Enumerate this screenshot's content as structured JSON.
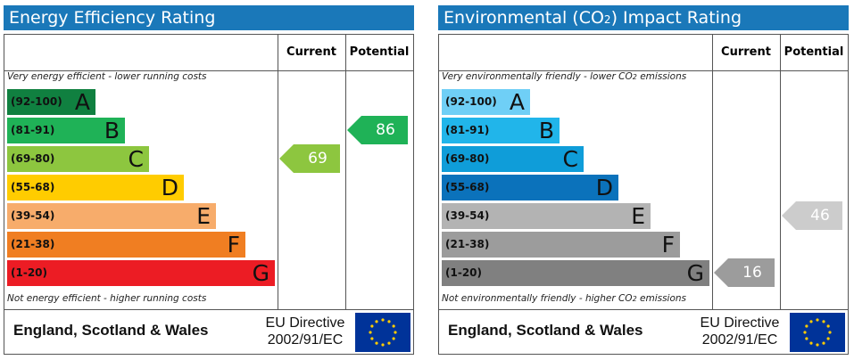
{
  "colors": {
    "header_bg": "#1a78b9",
    "energy": [
      "#108040",
      "#1fb257",
      "#8dc63f",
      "#ffcc00",
      "#f7ac6b",
      "#f07e22",
      "#ec1c24"
    ],
    "environmental": [
      "#6fcff6",
      "#21b5ea",
      "#0f9dd9",
      "#0b72bb",
      "#b3b3b3",
      "#9c9c9c",
      "#808080"
    ],
    "arrow_energy_current": "#8dc63f",
    "arrow_energy_potential": "#1fb257",
    "arrow_env_current": "#9c9c9c",
    "arrow_env_potential": "#cccccc"
  },
  "chart_data": [
    {
      "type": "bar",
      "title": "Energy Efficiency Rating",
      "columns": [
        "Current",
        "Potential"
      ],
      "top_caption": "Very energy efficient - lower running costs",
      "bottom_caption": "Not energy efficient - higher running costs",
      "bands": [
        {
          "range": "(92-100)",
          "letter": "A",
          "scale": 0.33
        },
        {
          "range": "(81-91)",
          "letter": "B",
          "scale": 0.44
        },
        {
          "range": "(69-80)",
          "letter": "C",
          "scale": 0.53
        },
        {
          "range": "(55-68)",
          "letter": "D",
          "scale": 0.66
        },
        {
          "range": "(39-54)",
          "letter": "E",
          "scale": 0.78
        },
        {
          "range": "(21-38)",
          "letter": "F",
          "scale": 0.89
        },
        {
          "range": "(1-20)",
          "letter": "G",
          "scale": 1.0
        }
      ],
      "current": {
        "value": 69,
        "band": "C"
      },
      "potential": {
        "value": 86,
        "band": "B"
      },
      "footer_country": "England, Scotland & Wales",
      "footer_directive_1": "EU Directive",
      "footer_directive_2": "2002/91/EC"
    },
    {
      "type": "bar",
      "title_prefix": "Environmental (CO",
      "title_sub": "2",
      "title_suffix": ") Impact Rating",
      "columns": [
        "Current",
        "Potential"
      ],
      "top_caption_prefix": "Very environmentally friendly - lower CO",
      "top_caption_sub": "2",
      "top_caption_suffix": " emissions",
      "bottom_caption_prefix": "Not environmentally friendly - higher CO",
      "bottom_caption_sub": "2",
      "bottom_caption_suffix": " emissions",
      "bands": [
        {
          "range": "(92-100)",
          "letter": "A",
          "scale": 0.33
        },
        {
          "range": "(81-91)",
          "letter": "B",
          "scale": 0.44
        },
        {
          "range": "(69-80)",
          "letter": "C",
          "scale": 0.53
        },
        {
          "range": "(55-68)",
          "letter": "D",
          "scale": 0.66
        },
        {
          "range": "(39-54)",
          "letter": "E",
          "scale": 0.78
        },
        {
          "range": "(21-38)",
          "letter": "F",
          "scale": 0.89
        },
        {
          "range": "(1-20)",
          "letter": "G",
          "scale": 1.0
        }
      ],
      "current": {
        "value": 16,
        "band": "G"
      },
      "potential": {
        "value": 46,
        "band": "E"
      },
      "footer_country": "England, Scotland & Wales",
      "footer_directive_1": "EU Directive",
      "footer_directive_2": "2002/91/EC"
    }
  ]
}
